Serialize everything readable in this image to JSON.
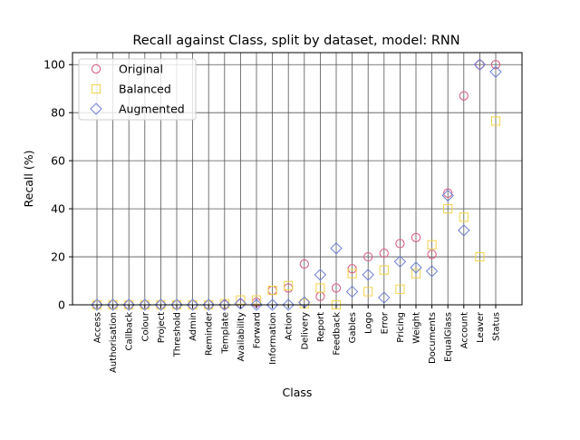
{
  "chart_data": {
    "type": "scatter",
    "title": "Recall against Class, split by dataset, model: RNN",
    "xlabel": "Class",
    "ylabel": "Recall (%)",
    "ylim": [
      0,
      105
    ],
    "yticks": [
      0,
      20,
      40,
      60,
      80,
      100
    ],
    "grid": true,
    "legend_position": "top-left",
    "categories": [
      "Access",
      "Authorisation",
      "Callback",
      "Colour",
      "Project",
      "Threshold",
      "Admin",
      "Reminder",
      "Template",
      "Availability",
      "Forward",
      "Information",
      "Action",
      "Delivery",
      "Report",
      "Feedback",
      "Gables",
      "Logo",
      "Error",
      "Pricing",
      "Weight",
      "Documents",
      "EqualGlass",
      "Account",
      "Leaver",
      "Status"
    ],
    "series": [
      {
        "name": "Original",
        "marker": "circle",
        "color": "#d6557a",
        "values": [
          0,
          0,
          0,
          0,
          0,
          0,
          0,
          0,
          0,
          0.5,
          1,
          6,
          7,
          17,
          3.5,
          7,
          15,
          20,
          21.5,
          25.5,
          28,
          21,
          46.5,
          87,
          100,
          100
        ]
      },
      {
        "name": "Balanced",
        "marker": "square",
        "color": "#f2d24b",
        "values": [
          0,
          0,
          0,
          0,
          0,
          0,
          0,
          0,
          0.5,
          2,
          2,
          6,
          8,
          0.5,
          7,
          0,
          13,
          5.5,
          14.5,
          6.5,
          13,
          25,
          40,
          36.5,
          20,
          76.5
        ]
      },
      {
        "name": "Augmented",
        "marker": "diamond",
        "color": "#6a7fd4",
        "values": [
          0,
          0,
          0,
          0,
          0,
          0,
          0,
          0,
          0,
          0.5,
          0,
          0,
          0,
          1,
          12.5,
          23.5,
          5.5,
          12.5,
          3,
          18,
          15.5,
          14,
          45.5,
          31,
          100,
          97
        ]
      }
    ]
  }
}
